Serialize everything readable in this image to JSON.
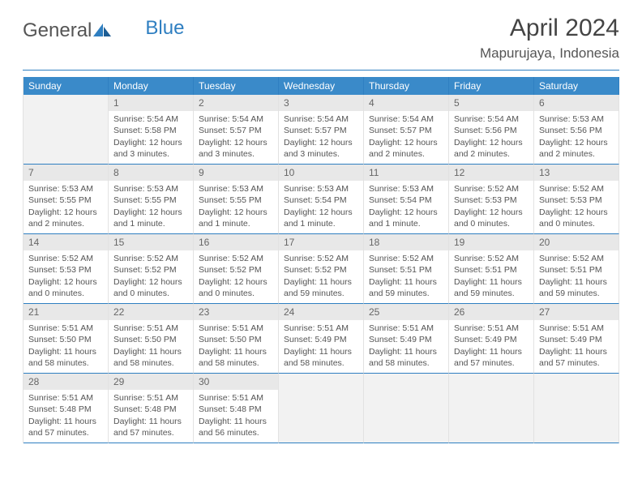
{
  "brand": {
    "part1": "General",
    "part2": "Blue"
  },
  "title": "April 2024",
  "location": "Mapurujaya, Indonesia",
  "colors": {
    "header_bg": "#3a8ac9",
    "accent": "#2f7fc1",
    "cell_border": "#e2e2e2",
    "daynum_bg": "#e8e8e8",
    "empty_bg": "#f2f2f2",
    "text": "#555555"
  },
  "weekdays": [
    "Sunday",
    "Monday",
    "Tuesday",
    "Wednesday",
    "Thursday",
    "Friday",
    "Saturday"
  ],
  "start_offset": 1,
  "days": [
    {
      "n": 1,
      "sr": "5:54 AM",
      "ss": "5:58 PM",
      "dl": "12 hours and 3 minutes."
    },
    {
      "n": 2,
      "sr": "5:54 AM",
      "ss": "5:57 PM",
      "dl": "12 hours and 3 minutes."
    },
    {
      "n": 3,
      "sr": "5:54 AM",
      "ss": "5:57 PM",
      "dl": "12 hours and 3 minutes."
    },
    {
      "n": 4,
      "sr": "5:54 AM",
      "ss": "5:57 PM",
      "dl": "12 hours and 2 minutes."
    },
    {
      "n": 5,
      "sr": "5:54 AM",
      "ss": "5:56 PM",
      "dl": "12 hours and 2 minutes."
    },
    {
      "n": 6,
      "sr": "5:53 AM",
      "ss": "5:56 PM",
      "dl": "12 hours and 2 minutes."
    },
    {
      "n": 7,
      "sr": "5:53 AM",
      "ss": "5:55 PM",
      "dl": "12 hours and 2 minutes."
    },
    {
      "n": 8,
      "sr": "5:53 AM",
      "ss": "5:55 PM",
      "dl": "12 hours and 1 minute."
    },
    {
      "n": 9,
      "sr": "5:53 AM",
      "ss": "5:55 PM",
      "dl": "12 hours and 1 minute."
    },
    {
      "n": 10,
      "sr": "5:53 AM",
      "ss": "5:54 PM",
      "dl": "12 hours and 1 minute."
    },
    {
      "n": 11,
      "sr": "5:53 AM",
      "ss": "5:54 PM",
      "dl": "12 hours and 1 minute."
    },
    {
      "n": 12,
      "sr": "5:52 AM",
      "ss": "5:53 PM",
      "dl": "12 hours and 0 minutes."
    },
    {
      "n": 13,
      "sr": "5:52 AM",
      "ss": "5:53 PM",
      "dl": "12 hours and 0 minutes."
    },
    {
      "n": 14,
      "sr": "5:52 AM",
      "ss": "5:53 PM",
      "dl": "12 hours and 0 minutes."
    },
    {
      "n": 15,
      "sr": "5:52 AM",
      "ss": "5:52 PM",
      "dl": "12 hours and 0 minutes."
    },
    {
      "n": 16,
      "sr": "5:52 AM",
      "ss": "5:52 PM",
      "dl": "12 hours and 0 minutes."
    },
    {
      "n": 17,
      "sr": "5:52 AM",
      "ss": "5:52 PM",
      "dl": "11 hours and 59 minutes."
    },
    {
      "n": 18,
      "sr": "5:52 AM",
      "ss": "5:51 PM",
      "dl": "11 hours and 59 minutes."
    },
    {
      "n": 19,
      "sr": "5:52 AM",
      "ss": "5:51 PM",
      "dl": "11 hours and 59 minutes."
    },
    {
      "n": 20,
      "sr": "5:52 AM",
      "ss": "5:51 PM",
      "dl": "11 hours and 59 minutes."
    },
    {
      "n": 21,
      "sr": "5:51 AM",
      "ss": "5:50 PM",
      "dl": "11 hours and 58 minutes."
    },
    {
      "n": 22,
      "sr": "5:51 AM",
      "ss": "5:50 PM",
      "dl": "11 hours and 58 minutes."
    },
    {
      "n": 23,
      "sr": "5:51 AM",
      "ss": "5:50 PM",
      "dl": "11 hours and 58 minutes."
    },
    {
      "n": 24,
      "sr": "5:51 AM",
      "ss": "5:49 PM",
      "dl": "11 hours and 58 minutes."
    },
    {
      "n": 25,
      "sr": "5:51 AM",
      "ss": "5:49 PM",
      "dl": "11 hours and 58 minutes."
    },
    {
      "n": 26,
      "sr": "5:51 AM",
      "ss": "5:49 PM",
      "dl": "11 hours and 57 minutes."
    },
    {
      "n": 27,
      "sr": "5:51 AM",
      "ss": "5:49 PM",
      "dl": "11 hours and 57 minutes."
    },
    {
      "n": 28,
      "sr": "5:51 AM",
      "ss": "5:48 PM",
      "dl": "11 hours and 57 minutes."
    },
    {
      "n": 29,
      "sr": "5:51 AM",
      "ss": "5:48 PM",
      "dl": "11 hours and 57 minutes."
    },
    {
      "n": 30,
      "sr": "5:51 AM",
      "ss": "5:48 PM",
      "dl": "11 hours and 56 minutes."
    }
  ],
  "labels": {
    "sunrise": "Sunrise:",
    "sunset": "Sunset:",
    "daylight": "Daylight:"
  }
}
